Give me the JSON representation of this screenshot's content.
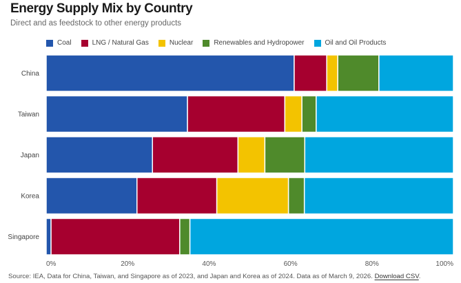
{
  "header": {
    "title": "Energy Supply Mix by Country",
    "subtitle": "Direct and as feedstock to other energy products"
  },
  "footer": {
    "source_text": "Source: IEA, Data for China, Taiwan, and Singapore as of 2023, and Japan and Korea as of 2024. Data as of March 9, 2026.",
    "download_label": "Download CSV"
  },
  "chart_data": {
    "type": "bar",
    "orientation": "horizontal",
    "stacked": true,
    "title": "Energy Supply Mix by Country",
    "subtitle": "Direct and as feedstock to other energy products",
    "xlabel": "",
    "ylabel": "",
    "xlim": [
      0,
      100
    ],
    "x_ticks": [
      "0%",
      "20%",
      "40%",
      "60%",
      "80%",
      "100%"
    ],
    "x_tick_values": [
      0,
      20,
      40,
      60,
      80,
      100
    ],
    "grid": false,
    "legend_position": "top",
    "categories": [
      "China",
      "Taiwan",
      "Japan",
      "Korea",
      "Singapore"
    ],
    "series": [
      {
        "name": "Coal",
        "color": "#2356ac",
        "values": [
          60.9,
          34.7,
          26.1,
          22.3,
          1.2
        ]
      },
      {
        "name": "LNG / Natural Gas",
        "color": "#a6002f",
        "values": [
          8.0,
          23.9,
          21.0,
          19.6,
          31.6
        ]
      },
      {
        "name": "Nuclear",
        "color": "#f3c300",
        "values": [
          2.7,
          4.2,
          6.6,
          17.6,
          0
        ]
      },
      {
        "name": "Renewables and Hydropower",
        "color": "#4f8a2b",
        "values": [
          10.1,
          3.5,
          9.8,
          3.9,
          2.5
        ]
      },
      {
        "name": "Oil and Oil Products",
        "color": "#00a6df",
        "values": [
          18.3,
          33.7,
          36.5,
          36.6,
          64.7
        ]
      }
    ]
  }
}
